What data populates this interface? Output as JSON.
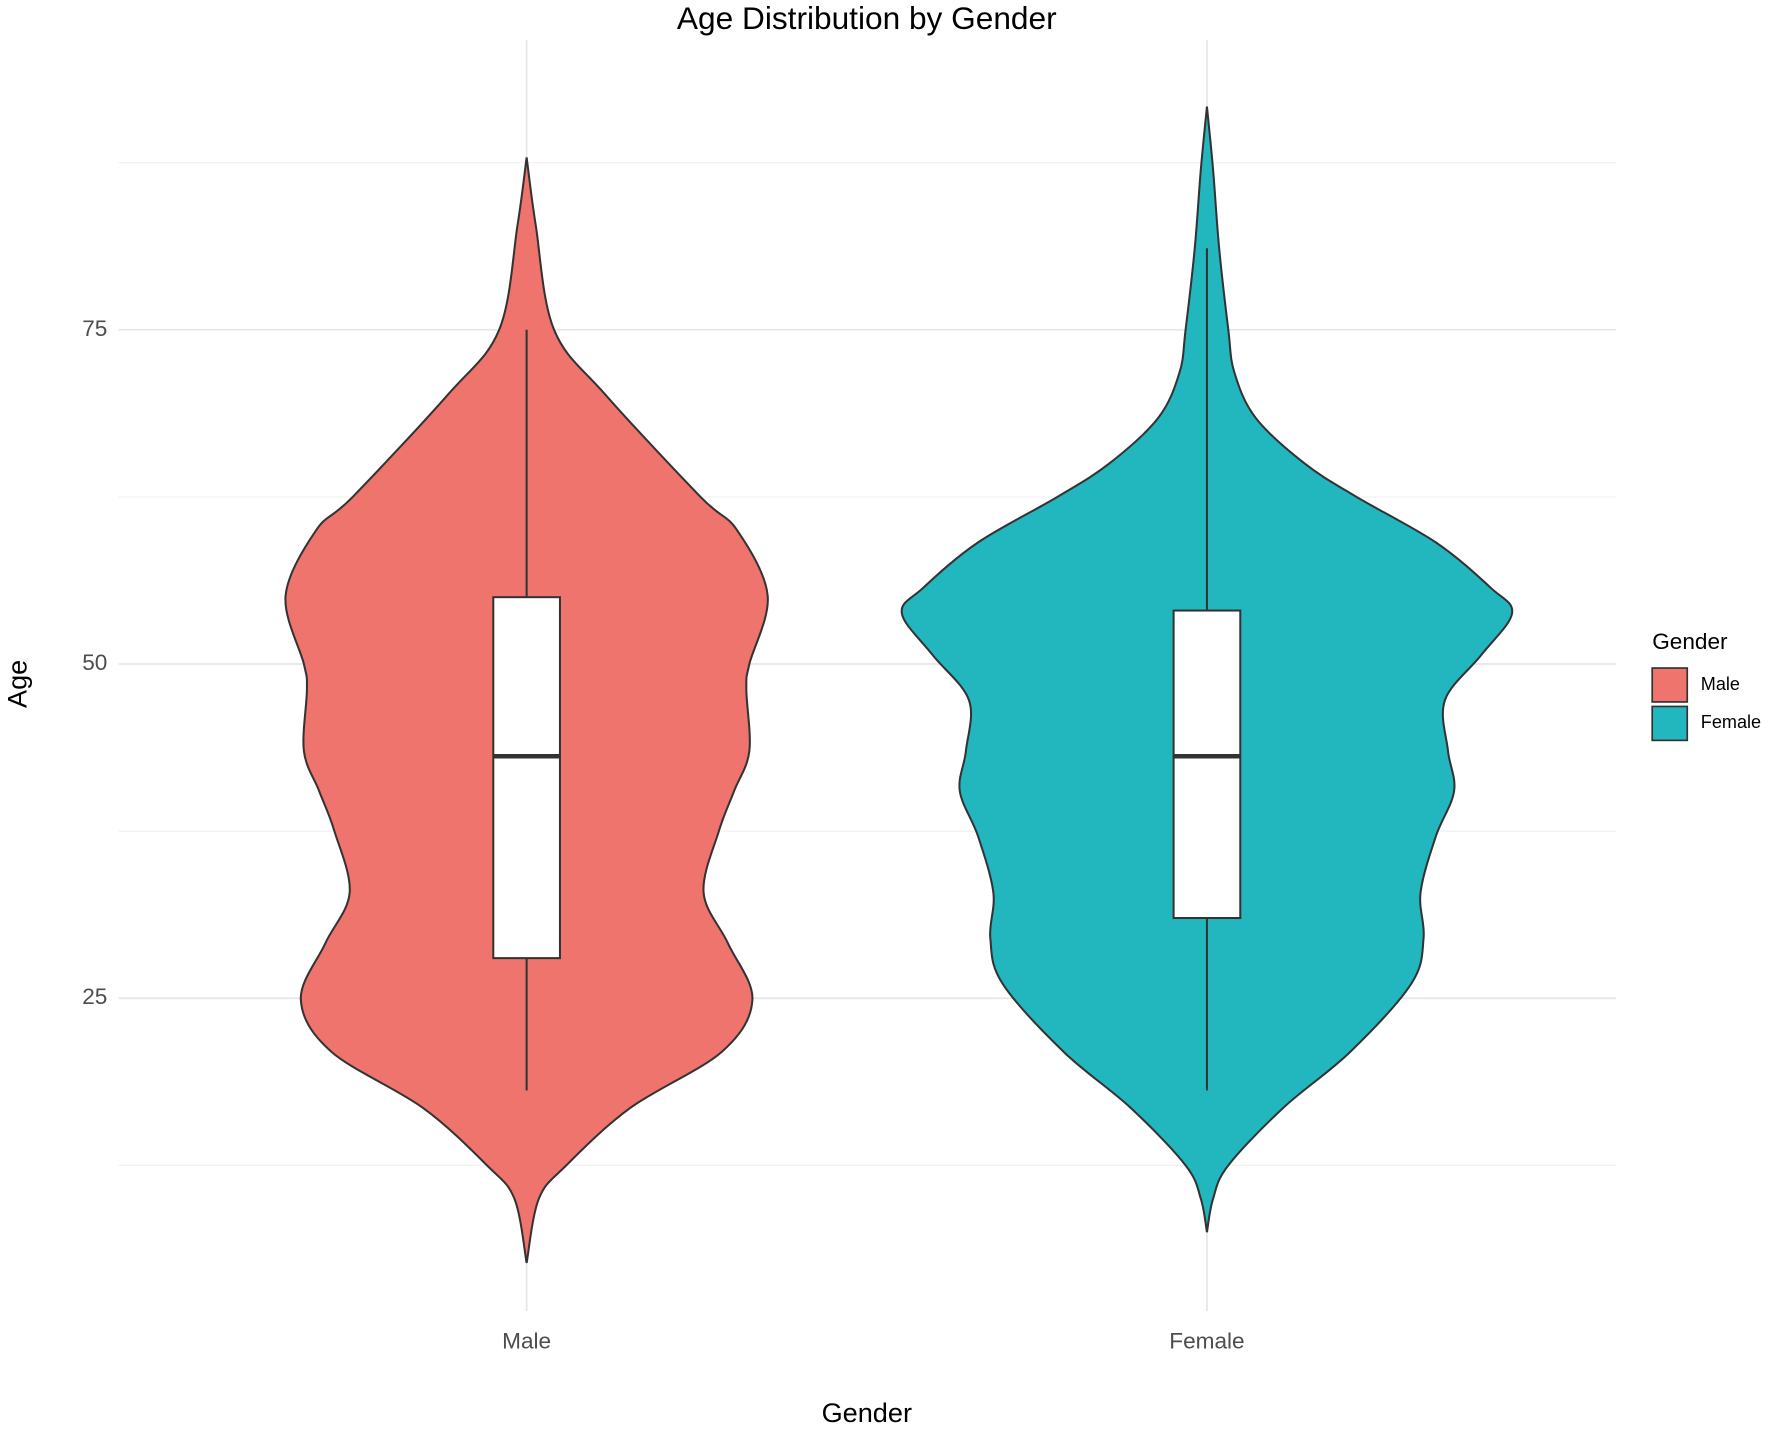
{
  "chart_data": {
    "type": "violin",
    "title": "Age Distribution by Gender",
    "x_label": "Gender",
    "y_label": "Age",
    "categories": [
      "Male",
      "Female"
    ],
    "ylim": [
      1.6,
      96.7
    ],
    "yticks": [
      25,
      50,
      75
    ],
    "minor_yticks": [
      12.5,
      37.5,
      62.5,
      87.5
    ],
    "grid": true,
    "legend": {
      "title": "Gender",
      "position": "right"
    },
    "series": [
      {
        "name": "Male",
        "color": "#EE746D",
        "age": [
          87.9,
          82.8,
          75,
          70.1,
          62.5,
          60,
          55.1,
          50,
          48.1,
          43.5,
          40.5,
          37.5,
          32.9,
          29.1,
          24.9,
          21,
          16.8,
          12.5,
          10,
          5.2
        ],
        "density": [
          0,
          0.03,
          0.09,
          0.26,
          0.57,
          0.69,
          0.79,
          0.73,
          0.72,
          0.73,
          0.68,
          0.63,
          0.58,
          0.66,
          0.74,
          0.64,
          0.34,
          0.13,
          0.04,
          0
        ],
        "box": {
          "whisker_low": 18.1,
          "q1": 28.0,
          "median": 43.1,
          "q3": 55.0,
          "whisker_high": 75
        }
      },
      {
        "name": "Female",
        "color": "#22B6BF",
        "age": [
          91.7,
          87,
          81.1,
          75,
          71.8,
          68.4,
          65,
          62.5,
          59.1,
          55.7,
          53.8,
          50.7,
          47.3,
          43.5,
          40.5,
          37.1,
          32.9,
          29.5,
          26.1,
          21,
          16.8,
          12.5,
          10,
          7.5
        ],
        "density": [
          0,
          0.02,
          0.04,
          0.07,
          0.09,
          0.16,
          0.32,
          0.49,
          0.75,
          0.93,
          1.0,
          0.9,
          0.78,
          0.79,
          0.81,
          0.75,
          0.7,
          0.71,
          0.67,
          0.47,
          0.25,
          0.07,
          0.02,
          0
        ],
        "box": {
          "whisker_low": 18.1,
          "q1": 31.0,
          "median": 43.1,
          "q3": 54.0,
          "whisker_high": 81.1
        }
      }
    ]
  }
}
